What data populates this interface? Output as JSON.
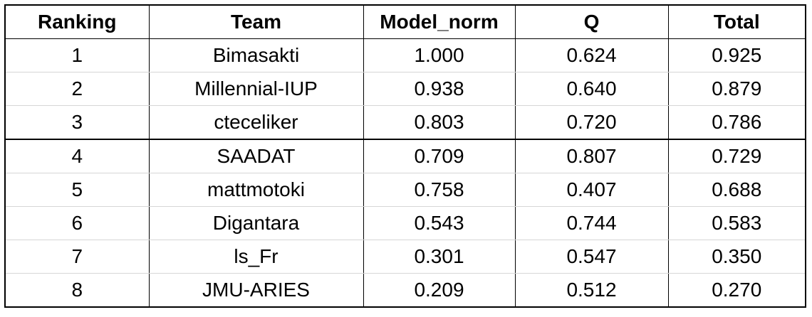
{
  "table": {
    "header": [
      "Ranking",
      "Team",
      "Model_norm",
      "Q",
      "Total"
    ],
    "rows": [
      [
        "1",
        "Bimasakti",
        "1.000",
        "0.624",
        "0.925"
      ],
      [
        "2",
        "Millennial-IUP",
        "0.938",
        "0.640",
        "0.879"
      ],
      [
        "3",
        "cteceliker",
        "0.803",
        "0.720",
        "0.786"
      ],
      [
        "4",
        "SAADAT",
        "0.709",
        "0.807",
        "0.729"
      ],
      [
        "5",
        "mattmotoki",
        "0.758",
        "0.407",
        "0.688"
      ],
      [
        "6",
        "Digantara",
        "0.543",
        "0.744",
        "0.583"
      ],
      [
        "7",
        "ls_Fr",
        "0.301",
        "0.547",
        "0.350"
      ],
      [
        "8",
        "JMU-ARIES",
        "0.209",
        "0.512",
        "0.270"
      ]
    ]
  }
}
